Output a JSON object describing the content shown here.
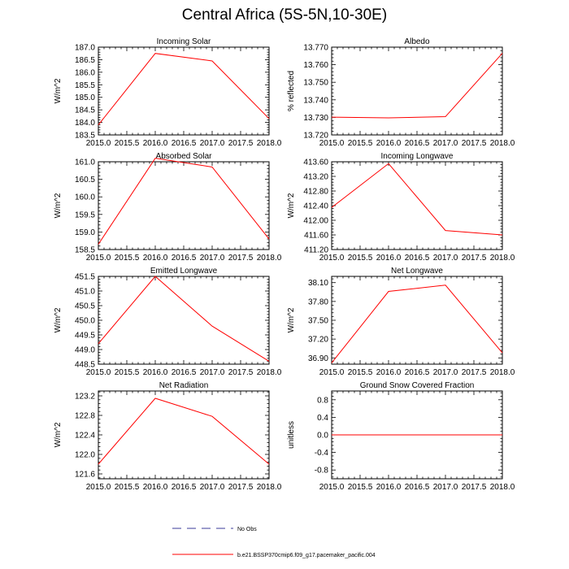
{
  "figure": {
    "title": "Central Africa (5S-5N,10-30E)"
  },
  "legend": {
    "obs_label": "No Obs",
    "run_label": "b.e21.BSSP370cmip6.f09_g17.pacemaker_pacific.004",
    "obs_color": "#3b3b9a",
    "run_color": "#ff0000"
  },
  "chart_data": [
    {
      "type": "line",
      "title": "Incoming Solar",
      "ylabel": "W/m^2",
      "x": [
        2015.0,
        2016.0,
        2017.0,
        2018.0
      ],
      "xlim": [
        2015.0,
        2018.0
      ],
      "xticks": [
        "2015.0",
        "2015.5",
        "2016.0",
        "2016.5",
        "2017.0",
        "2017.5",
        "2018.0"
      ],
      "ylim": [
        183.5,
        187.0
      ],
      "yticks": [
        "183.5",
        "184.0",
        "184.5",
        "185.0",
        "185.5",
        "186.0",
        "186.5",
        "187.0"
      ],
      "series": [
        {
          "values": [
            183.9,
            186.75,
            186.45,
            184.15
          ],
          "color": "#ff0000"
        }
      ]
    },
    {
      "type": "line",
      "title": "Albedo",
      "ylabel": "% reflected",
      "x": [
        2015.0,
        2016.0,
        2017.0,
        2018.0
      ],
      "xlim": [
        2015.0,
        2018.0
      ],
      "xticks": [
        "2015.0",
        "2015.5",
        "2016.0",
        "2016.5",
        "2017.0",
        "2017.5",
        "2018.0"
      ],
      "ylim": [
        13.72,
        13.77
      ],
      "yticks": [
        "13.720",
        "13.730",
        "13.740",
        "13.750",
        "13.760",
        "13.770"
      ],
      "series": [
        {
          "values": [
            13.7301,
            13.7297,
            13.7304,
            13.7665
          ],
          "color": "#ff0000"
        }
      ]
    },
    {
      "type": "line",
      "title": "Absorbed Solar",
      "ylabel": "W/m^2",
      "x": [
        2015.0,
        2016.0,
        2017.0,
        2018.0
      ],
      "xlim": [
        2015.0,
        2018.0
      ],
      "xticks": [
        "2015.0",
        "2015.5",
        "2016.0",
        "2016.5",
        "2017.0",
        "2017.5",
        "2018.0"
      ],
      "ylim": [
        158.5,
        161.0
      ],
      "yticks": [
        "158.5",
        "159.0",
        "159.5",
        "160.0",
        "160.5",
        "161.0"
      ],
      "series": [
        {
          "values": [
            158.65,
            161.1,
            160.85,
            158.8
          ],
          "color": "#ff0000"
        }
      ]
    },
    {
      "type": "line",
      "title": "Incoming Longwave",
      "ylabel": "W/m^2",
      "x": [
        2015.0,
        2016.0,
        2017.0,
        2018.0
      ],
      "xlim": [
        2015.0,
        2018.0
      ],
      "xticks": [
        "2015.0",
        "2015.5",
        "2016.0",
        "2016.5",
        "2017.0",
        "2017.5",
        "2018.0"
      ],
      "ylim": [
        411.2,
        413.6
      ],
      "yticks": [
        "411.20",
        "411.60",
        "412.00",
        "412.40",
        "412.80",
        "413.20",
        "413.60"
      ],
      "series": [
        {
          "values": [
            412.35,
            413.55,
            411.72,
            411.6
          ],
          "color": "#ff0000"
        }
      ]
    },
    {
      "type": "line",
      "title": "Emitted Longwave",
      "ylabel": "W/m^2",
      "x": [
        2015.0,
        2016.0,
        2017.0,
        2018.0
      ],
      "xlim": [
        2015.0,
        2018.0
      ],
      "xticks": [
        "2015.0",
        "2015.5",
        "2016.0",
        "2016.5",
        "2017.0",
        "2017.5",
        "2018.0"
      ],
      "ylim": [
        448.5,
        451.5
      ],
      "yticks": [
        "448.5",
        "449.0",
        "449.5",
        "450.0",
        "450.5",
        "451.0",
        "451.5"
      ],
      "series": [
        {
          "values": [
            449.2,
            451.5,
            449.8,
            448.6
          ],
          "color": "#ff0000"
        }
      ]
    },
    {
      "type": "line",
      "title": "Net Longwave",
      "ylabel": "W/m^2",
      "x": [
        2015.0,
        2016.0,
        2017.0,
        2018.0
      ],
      "xlim": [
        2015.0,
        2018.0
      ],
      "xticks": [
        "2015.0",
        "2015.5",
        "2016.0",
        "2016.5",
        "2017.0",
        "2017.5",
        "2018.0"
      ],
      "ylim": [
        36.8,
        38.2
      ],
      "yticks": [
        "36.90",
        "37.20",
        "37.50",
        "37.80",
        "38.10"
      ],
      "series": [
        {
          "values": [
            36.82,
            37.96,
            38.06,
            36.98
          ],
          "color": "#ff0000"
        }
      ]
    },
    {
      "type": "line",
      "title": "Net Radiation",
      "ylabel": "W/m^2",
      "x": [
        2015.0,
        2016.0,
        2017.0,
        2018.0
      ],
      "xlim": [
        2015.0,
        2018.0
      ],
      "xticks": [
        "2015.0",
        "2015.5",
        "2016.0",
        "2016.5",
        "2017.0",
        "2017.5",
        "2018.0"
      ],
      "ylim": [
        121.5,
        123.3
      ],
      "yticks": [
        "121.6",
        "122.0",
        "122.4",
        "122.8",
        "123.2"
      ],
      "series": [
        {
          "values": [
            121.8,
            123.15,
            122.78,
            121.8
          ],
          "color": "#ff0000"
        }
      ]
    },
    {
      "type": "line",
      "title": "Ground Snow Covered Fraction",
      "ylabel": "unitless",
      "x": [
        2015.0,
        2016.0,
        2017.0,
        2018.0
      ],
      "xlim": [
        2015.0,
        2018.0
      ],
      "xticks": [
        "2015.0",
        "2015.5",
        "2016.0",
        "2016.5",
        "2017.0",
        "2017.5",
        "2018.0"
      ],
      "ylim": [
        -1.0,
        1.0
      ],
      "yticks": [
        "-0.8",
        "-0.4",
        "0.0",
        "0.4",
        "0.8"
      ],
      "series": [
        {
          "values": [
            0.0,
            0.0,
            0.0,
            0.0
          ],
          "color": "#ff0000"
        }
      ]
    }
  ]
}
